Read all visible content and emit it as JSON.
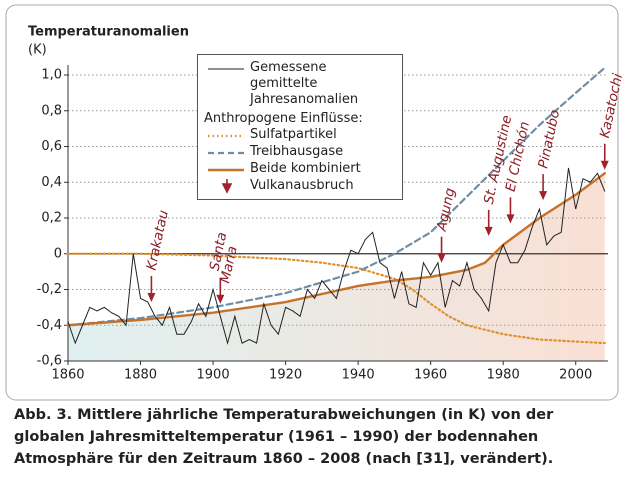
{
  "chart_data": {
    "type": "line",
    "title": "Temperaturanomalien",
    "y_label": "(K)",
    "xlim": [
      1860,
      2010
    ],
    "ylim": [
      -0.6,
      1.0
    ],
    "xticks": [
      1860,
      1880,
      1900,
      1920,
      1940,
      1960,
      1980,
      2000
    ],
    "yticks": [
      {
        "value": 1.0,
        "label": "1,0"
      },
      {
        "value": 0.8,
        "label": "0,8"
      },
      {
        "value": 0.6,
        "label": "0,6"
      },
      {
        "value": 0.4,
        "label": "0,4"
      },
      {
        "value": 0.2,
        "label": "0,2"
      },
      0,
      {
        "value": -0.2,
        "label": "-0,2"
      },
      {
        "value": -0.4,
        "label": "-0,4"
      },
      {
        "value": -0.6,
        "label": "-0,6"
      }
    ],
    "grid": true,
    "legend_heading": "Anthropogene Einflüsse:",
    "series": [
      {
        "name": "Gemessene gemittelte Jahresanomalien",
        "color": "#222222",
        "style": "solid",
        "x": [
          1860,
          1862,
          1864,
          1866,
          1868,
          1870,
          1872,
          1874,
          1876,
          1878,
          1880,
          1882,
          1884,
          1886,
          1888,
          1890,
          1892,
          1894,
          1896,
          1898,
          1900,
          1902,
          1904,
          1906,
          1908,
          1910,
          1912,
          1914,
          1916,
          1918,
          1920,
          1922,
          1924,
          1926,
          1928,
          1930,
          1932,
          1934,
          1936,
          1938,
          1940,
          1942,
          1944,
          1946,
          1948,
          1950,
          1952,
          1954,
          1956,
          1958,
          1960,
          1962,
          1964,
          1966,
          1968,
          1970,
          1972,
          1974,
          1976,
          1978,
          1980,
          1982,
          1984,
          1986,
          1988,
          1990,
          1992,
          1994,
          1996,
          1998,
          2000,
          2002,
          2004,
          2006,
          2008
        ],
        "values": [
          -0.38,
          -0.5,
          -0.4,
          -0.3,
          -0.32,
          -0.3,
          -0.33,
          -0.35,
          -0.4,
          0.0,
          -0.25,
          -0.27,
          -0.35,
          -0.4,
          -0.3,
          -0.45,
          -0.45,
          -0.38,
          -0.28,
          -0.35,
          -0.2,
          -0.35,
          -0.5,
          -0.35,
          -0.5,
          -0.48,
          -0.5,
          -0.28,
          -0.4,
          -0.45,
          -0.3,
          -0.32,
          -0.35,
          -0.2,
          -0.25,
          -0.15,
          -0.2,
          -0.25,
          -0.1,
          0.02,
          0.0,
          0.08,
          0.12,
          -0.05,
          -0.08,
          -0.25,
          -0.1,
          -0.28,
          -0.3,
          -0.05,
          -0.12,
          -0.05,
          -0.3,
          -0.15,
          -0.18,
          -0.05,
          -0.2,
          -0.25,
          -0.32,
          -0.05,
          0.05,
          -0.05,
          -0.05,
          0.02,
          0.15,
          0.25,
          0.05,
          0.1,
          0.12,
          0.48,
          0.25,
          0.42,
          0.4,
          0.45,
          0.35
        ]
      },
      {
        "name": "Sulfatpartikel",
        "color": "#e0902e",
        "style": "dotted",
        "x": [
          1860,
          1880,
          1900,
          1920,
          1930,
          1940,
          1950,
          1955,
          1960,
          1965,
          1970,
          1980,
          1990,
          2008
        ],
        "values": [
          0,
          0,
          -0.01,
          -0.03,
          -0.05,
          -0.08,
          -0.14,
          -0.2,
          -0.28,
          -0.35,
          -0.4,
          -0.45,
          -0.48,
          -0.5
        ]
      },
      {
        "name": "Treibhausgase",
        "color": "#6f8ea6",
        "style": "dashed",
        "x": [
          1860,
          1880,
          1900,
          1920,
          1940,
          1950,
          1960,
          1970,
          1980,
          1990,
          2000,
          2008
        ],
        "values": [
          -0.4,
          -0.36,
          -0.3,
          -0.22,
          -0.1,
          0.0,
          0.12,
          0.32,
          0.52,
          0.72,
          0.9,
          1.04
        ]
      },
      {
        "name": "Beide kombiniert",
        "color": "#c4732c",
        "style": "solid-thick",
        "x": [
          1860,
          1880,
          1900,
          1920,
          1940,
          1950,
          1960,
          1970,
          1975,
          1980,
          1990,
          2000,
          2008
        ],
        "values": [
          -0.4,
          -0.37,
          -0.33,
          -0.27,
          -0.18,
          -0.15,
          -0.13,
          -0.09,
          -0.05,
          0.05,
          0.2,
          0.33,
          0.45
        ]
      }
    ],
    "volcano_legend": "Vulkanausbruch",
    "volcanoes": [
      {
        "name": "Krakatau",
        "x": 1883,
        "y": -0.27
      },
      {
        "name": "Santa Maria",
        "x": 1902,
        "y": -0.28
      },
      {
        "name": "Agung",
        "x": 1963,
        "y": -0.05
      },
      {
        "name": "St. Augustine",
        "x": 1976,
        "y": 0.1
      },
      {
        "name": "El Chichón",
        "x": 1982,
        "y": 0.17
      },
      {
        "name": "Pinatubo",
        "x": 1991,
        "y": 0.3
      },
      {
        "name": "Kasatochi",
        "x": 2008,
        "y": 0.47
      }
    ],
    "caption": [
      "Abb. 3. Mittlere jährliche Temperaturabweichungen (in K) von der",
      "globalen Jahresmitteltemperatur (1961 – 1990) der bodennahen",
      "Atmosphäre für den Zeitraum 1860 – 2008 (nach [31], verändert)."
    ]
  }
}
